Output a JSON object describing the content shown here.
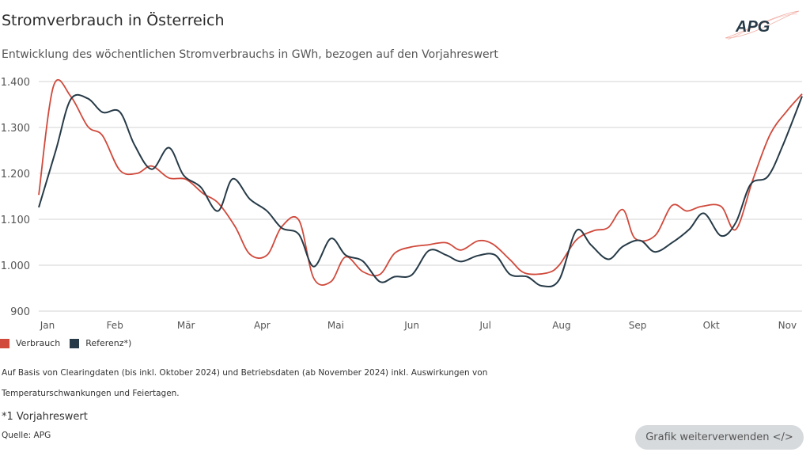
{
  "header": {
    "title": "Stromverbrauch in Österreich",
    "subtitle": "Entwicklung des wöchentlichen Stromverbrauchs in GWh, bezogen auf den Vorjahreswert",
    "logo_text": "APG"
  },
  "chart_data": {
    "type": "line",
    "title": "Stromverbrauch in Österreich",
    "subtitle": "Entwicklung des wöchentlichen Stromverbrauchs in GWh, bezogen auf den Vorjahreswert",
    "year": 2024,
    "xlim": [
      "01-01",
      "11-07"
    ],
    "ylim": [
      900,
      1400
    ],
    "grid": true,
    "legend_position": "bottom-left",
    "x_ticks": [
      {
        "date": "01-01",
        "label": "Jan"
      },
      {
        "date": "02-01",
        "label": "Feb"
      },
      {
        "date": "03-01",
        "label": "Mär"
      },
      {
        "date": "04-01",
        "label": "Apr"
      },
      {
        "date": "05-01",
        "label": "Mai"
      },
      {
        "date": "06-01",
        "label": "Jun"
      },
      {
        "date": "07-01",
        "label": "Jul"
      },
      {
        "date": "08-01",
        "label": "Aug"
      },
      {
        "date": "09-01",
        "label": "Sep"
      },
      {
        "date": "10-01",
        "label": "Okt"
      },
      {
        "date": "11-01",
        "label": "Nov"
      }
    ],
    "y_ticks": [
      {
        "value": 1400,
        "label": "1.400"
      },
      {
        "value": 1300,
        "label": "1.300"
      },
      {
        "value": 1200,
        "label": "1.200"
      },
      {
        "value": 1100,
        "label": "1.100"
      },
      {
        "value": 1000,
        "label": "1.000"
      },
      {
        "value": 900,
        "label": "900"
      }
    ],
    "series": [
      {
        "name": "Verbrauch",
        "color": "#d0493b",
        "points": [
          [
            "01-01",
            1153
          ],
          [
            "01-07",
            1390
          ],
          [
            "01-14",
            1368
          ],
          [
            "01-21",
            1302
          ],
          [
            "01-27",
            1282
          ],
          [
            "02-03",
            1207
          ],
          [
            "02-10",
            1200
          ],
          [
            "02-16",
            1216
          ],
          [
            "02-23",
            1190
          ],
          [
            "03-01",
            1187
          ],
          [
            "03-08",
            1156
          ],
          [
            "03-14",
            1136
          ],
          [
            "03-21",
            1084
          ],
          [
            "03-27",
            1024
          ],
          [
            "04-03",
            1022
          ],
          [
            "04-09",
            1084
          ],
          [
            "04-16",
            1098
          ],
          [
            "04-22",
            972
          ],
          [
            "04-29",
            964
          ],
          [
            "05-05",
            1018
          ],
          [
            "05-12",
            986
          ],
          [
            "05-19",
            980
          ],
          [
            "05-25",
            1026
          ],
          [
            "06-01",
            1040
          ],
          [
            "06-07",
            1044
          ],
          [
            "06-15",
            1049
          ],
          [
            "06-21",
            1033
          ],
          [
            "06-28",
            1053
          ],
          [
            "07-04",
            1046
          ],
          [
            "07-11",
            1012
          ],
          [
            "07-17",
            983
          ],
          [
            "07-26",
            983
          ],
          [
            "07-31",
            1000
          ],
          [
            "08-07",
            1055
          ],
          [
            "08-14",
            1075
          ],
          [
            "08-20",
            1082
          ],
          [
            "08-26",
            1121
          ],
          [
            "08-31",
            1058
          ],
          [
            "09-08",
            1064
          ],
          [
            "09-15",
            1130
          ],
          [
            "09-21",
            1118
          ],
          [
            "09-27",
            1128
          ],
          [
            "10-05",
            1128
          ],
          [
            "10-11",
            1078
          ],
          [
            "10-18",
            1187
          ],
          [
            "10-25",
            1285
          ],
          [
            "11-01",
            1337
          ],
          [
            "11-07",
            1373
          ]
        ]
      },
      {
        "name": "Referenz*)",
        "color": "#263a47",
        "points": [
          [
            "01-01",
            1126
          ],
          [
            "01-08",
            1251
          ],
          [
            "01-14",
            1361
          ],
          [
            "01-21",
            1363
          ],
          [
            "01-27",
            1333
          ],
          [
            "02-03",
            1334
          ],
          [
            "02-09",
            1262
          ],
          [
            "02-16",
            1209
          ],
          [
            "02-23",
            1256
          ],
          [
            "02-29",
            1196
          ],
          [
            "03-07",
            1170
          ],
          [
            "03-14",
            1118
          ],
          [
            "03-20",
            1188
          ],
          [
            "03-27",
            1144
          ],
          [
            "04-03",
            1118
          ],
          [
            "04-09",
            1081
          ],
          [
            "04-16",
            1067
          ],
          [
            "04-22",
            997
          ],
          [
            "04-29",
            1058
          ],
          [
            "05-05",
            1022
          ],
          [
            "05-12",
            1009
          ],
          [
            "05-19",
            964
          ],
          [
            "05-25",
            975
          ],
          [
            "06-01",
            979
          ],
          [
            "06-08",
            1032
          ],
          [
            "06-15",
            1022
          ],
          [
            "06-21",
            1008
          ],
          [
            "06-28",
            1021
          ],
          [
            "07-05",
            1022
          ],
          [
            "07-11",
            980
          ],
          [
            "07-18",
            975
          ],
          [
            "07-24",
            955
          ],
          [
            "07-31",
            968
          ],
          [
            "08-07",
            1075
          ],
          [
            "08-13",
            1044
          ],
          [
            "08-20",
            1013
          ],
          [
            "08-26",
            1041
          ],
          [
            "09-02",
            1054
          ],
          [
            "09-08",
            1029
          ],
          [
            "09-15",
            1049
          ],
          [
            "09-22",
            1078
          ],
          [
            "09-28",
            1113
          ],
          [
            "10-05",
            1064
          ],
          [
            "10-11",
            1093
          ],
          [
            "10-17",
            1176
          ],
          [
            "10-24",
            1193
          ],
          [
            "10-30",
            1259
          ],
          [
            "11-07",
            1368
          ]
        ]
      }
    ]
  },
  "notes": {
    "line1": "Auf Basis von Clearingdaten (bis inkl. Oktober 2024) und Betriebsdaten (ab November 2024) inkl. Auswirkungen von",
    "line2": "Temperaturschwankungen und Feiertagen.",
    "footnote": "*1 Vorjahreswert",
    "source": "Quelle: APG"
  },
  "reuse_button": {
    "label": "Grafik weiterverwenden </>"
  }
}
